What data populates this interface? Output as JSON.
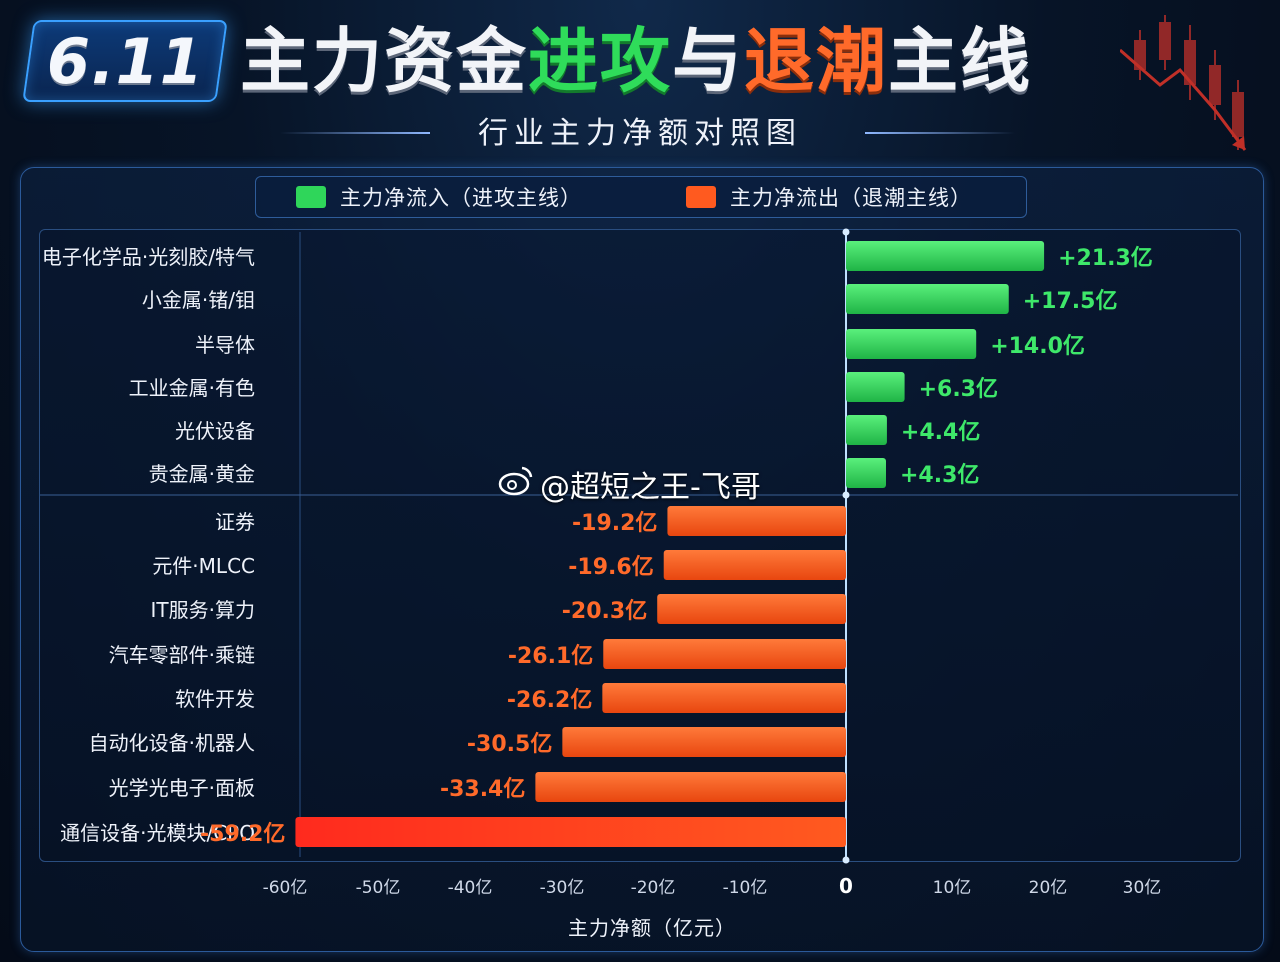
{
  "header": {
    "date": "6.11",
    "title_parts": [
      {
        "text": "主力资金",
        "tone": "white"
      },
      {
        "text": "进攻",
        "tone": "green"
      },
      {
        "text": "与",
        "tone": "white"
      },
      {
        "text": "退潮",
        "tone": "orange"
      },
      {
        "text": "主线",
        "tone": "white"
      }
    ],
    "subtitle": "行业主力净额对照图"
  },
  "legend": {
    "inflow_label": "主力净流入（进攻主线）",
    "outflow_label": "主力净流出（退潮主线）"
  },
  "watermark": "@超短之王-飞哥",
  "colors": {
    "inflow": "#2fd65a",
    "outflow": "#ff5a1f",
    "outflow_strong": "#ff3322",
    "inflow_label": "#3ee86a",
    "outflow_label": "#ff6a2a"
  },
  "chart_data": {
    "type": "bar",
    "orientation": "horizontal",
    "xlabel": "主力净额（亿元）",
    "xlim": [
      -60,
      30
    ],
    "x_ticks": [
      {
        "value": -60,
        "label": "-60亿"
      },
      {
        "value": -50,
        "label": "-50亿"
      },
      {
        "value": -40,
        "label": "-40亿"
      },
      {
        "value": -30,
        "label": "-30亿"
      },
      {
        "value": -20,
        "label": "-20亿"
      },
      {
        "value": -10,
        "label": "-10亿"
      },
      {
        "value": 0,
        "label": "0"
      },
      {
        "value": 10,
        "label": "10亿"
      },
      {
        "value": 20,
        "label": "20亿"
      },
      {
        "value": 30,
        "label": "30亿"
      }
    ],
    "categories": [
      "电子化学品·光刻胶/特气",
      "小金属·锗/钼",
      "半导体",
      "工业金属·有色",
      "光伏设备",
      "贵金属·黄金",
      "证券",
      "元件·MLCC",
      "IT服务·算力",
      "汽车零部件·乘链",
      "软件开发",
      "自动化设备·机器人",
      "光学光电子·面板",
      "通信设备·光模块/CPO"
    ],
    "values": [
      21.3,
      17.5,
      14.0,
      6.3,
      4.4,
      4.3,
      -19.2,
      -19.6,
      -20.3,
      -26.1,
      -26.2,
      -30.5,
      -33.4,
      -59.2
    ],
    "value_labels": [
      "+21.3亿",
      "+17.5亿",
      "+14.0亿",
      "+6.3亿",
      "+4.4亿",
      "+4.3亿",
      "-19.2亿",
      "-19.6亿",
      "-20.3亿",
      "-26.1亿",
      "-26.2亿",
      "-30.5亿",
      "-33.4亿",
      "-59.2亿"
    ]
  }
}
